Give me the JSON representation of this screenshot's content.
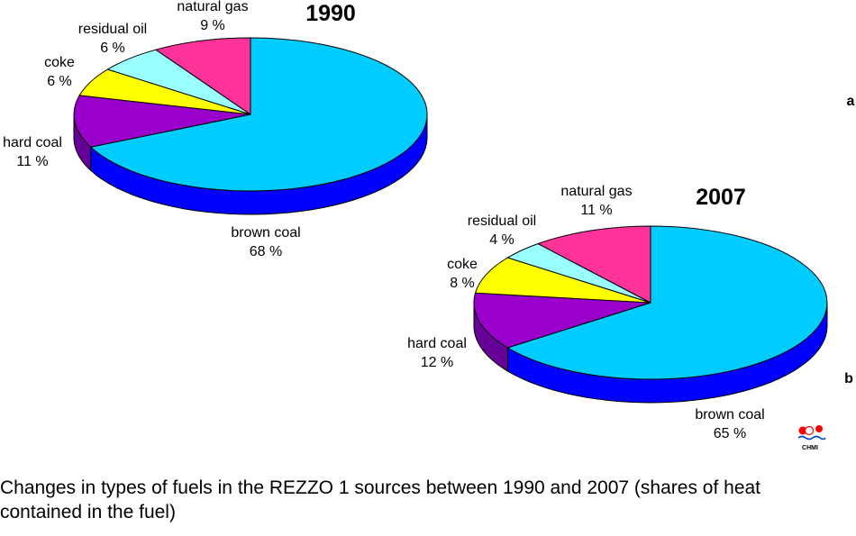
{
  "chart_data": [
    {
      "type": "pie",
      "title": "1990",
      "panel": "a",
      "slices": [
        {
          "label": "brown coal",
          "value": 68,
          "value_label": "68 %",
          "color": "#00ccff",
          "side_color": "#0000ff"
        },
        {
          "label": "hard coal",
          "value": 11,
          "value_label": "11 %",
          "color": "#9900cc",
          "side_color": "#660099"
        },
        {
          "label": "coke",
          "value": 6,
          "value_label": "6 %",
          "color": "#ffff00",
          "side_color": "#999900"
        },
        {
          "label": "residual oil",
          "value": 6,
          "value_label": "6 %",
          "color": "#99ffff",
          "side_color": "#669999"
        },
        {
          "label": "natural gas",
          "value": 9,
          "value_label": "9 %",
          "color": "#ff3399",
          "side_color": "#990033"
        }
      ]
    },
    {
      "type": "pie",
      "title": "2007",
      "panel": "b",
      "slices": [
        {
          "label": "brown coal",
          "value": 65,
          "value_label": "65 %",
          "color": "#00ccff",
          "side_color": "#0000ff"
        },
        {
          "label": "hard coal",
          "value": 12,
          "value_label": "12 %",
          "color": "#9900cc",
          "side_color": "#660099"
        },
        {
          "label": "coke",
          "value": 8,
          "value_label": "8 %",
          "color": "#ffff00",
          "side_color": "#999900"
        },
        {
          "label": "residual oil",
          "value": 4,
          "value_label": "4 %",
          "color": "#99ffff",
          "side_color": "#669999"
        },
        {
          "label": "natural gas",
          "value": 11,
          "value_label": "11 %",
          "color": "#ff3399",
          "side_color": "#990033"
        }
      ]
    }
  ],
  "logo": {
    "text": "CHMI"
  },
  "caption": "Changes in types of fuels in the REZZO 1 sources between 1990 and 2007 (shares of heat contained in the fuel)"
}
